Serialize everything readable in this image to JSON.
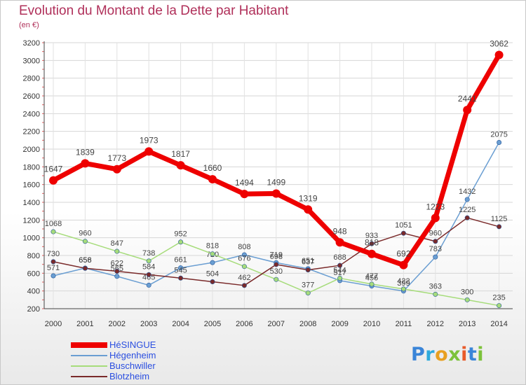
{
  "title": "Evolution du Montant de la Dette par Habitant",
  "subtitle": "(en €)",
  "logo": {
    "text": "Proxiti",
    "letters": [
      {
        "ch": "P",
        "color": "#3a85d8"
      },
      {
        "ch": "r",
        "color": "#2eaadc"
      },
      {
        "ch": "o",
        "color": "#e8a020"
      },
      {
        "ch": "x",
        "color": "#7cc23a"
      },
      {
        "ch": "i",
        "color": "#e85a2a"
      },
      {
        "ch": "t",
        "color": "#3a85d8"
      },
      {
        "ch": "i",
        "color": "#7cc23a"
      }
    ]
  },
  "chart_data": {
    "type": "line",
    "title": "Evolution du Montant de la Dette par Habitant",
    "subtitle": "(en €)",
    "x": [
      "2000",
      "2001",
      "2002",
      "2003",
      "2004",
      "2005",
      "2006",
      "2007",
      "2008",
      "2009",
      "2010",
      "2011",
      "2012",
      "2013",
      "2014"
    ],
    "ylim": [
      200,
      3200
    ],
    "yticks": [
      200,
      400,
      600,
      800,
      1000,
      1200,
      1400,
      1600,
      1800,
      2000,
      2200,
      2400,
      2600,
      2800,
      3000,
      3200
    ],
    "grid": true,
    "legend_position": "bottom-left",
    "series": [
      {
        "name": "HéSINGUE",
        "color": "#ee0000",
        "legend_color": "#2a4ee0",
        "values": [
          1647,
          1839,
          1773,
          1973,
          1817,
          1660,
          1494,
          1499,
          1319,
          948,
          818,
          692,
          1223,
          2441,
          3062
        ],
        "labels": [
          "1647",
          "1839",
          "1773",
          "1973",
          "1817",
          "1660",
          "1494",
          "1499",
          "1319",
          "948",
          "818",
          "692",
          "1223",
          "2441",
          "3062"
        ]
      },
      {
        "name": "Hégenheim",
        "color": "#6a9ed2",
        "legend_color": "#2a4ee0",
        "values": [
          571,
          658,
          565,
          465,
          661,
          720,
          808,
          719,
          651,
          517,
          456,
          399,
          783,
          1432,
          2075
        ],
        "labels": [
          "571",
          "658",
          "565",
          "465",
          "661",
          "720",
          "808",
          "719",
          "651",
          "517",
          "456",
          "399",
          "783",
          "1432",
          "2075"
        ]
      },
      {
        "name": "Buschwiller",
        "color": "#a6dc7a",
        "legend_color": "#2a4ee0",
        "values": [
          1068,
          960,
          847,
          738,
          952,
          818,
          676,
          530,
          377,
          544,
          477,
          422,
          363,
          300,
          235
        ],
        "labels": [
          "1068",
          "960",
          "847",
          "738",
          "952",
          "818",
          "676",
          "530",
          "377",
          "544",
          "477",
          "422",
          "363",
          "300",
          "235"
        ]
      },
      {
        "name": "Blotzheim",
        "color": "#7a2a2a",
        "legend_color": "#2a4ee0",
        "values": [
          730,
          656,
          622,
          584,
          545,
          504,
          462,
          698,
          637,
          688,
          933,
          1051,
          960,
          1225,
          1125
        ],
        "labels": [
          "730",
          "656",
          "622",
          "584",
          "545",
          "504",
          "462",
          "698",
          "637",
          "688",
          "933",
          "1051",
          "960",
          "1225",
          "1125"
        ]
      }
    ]
  }
}
